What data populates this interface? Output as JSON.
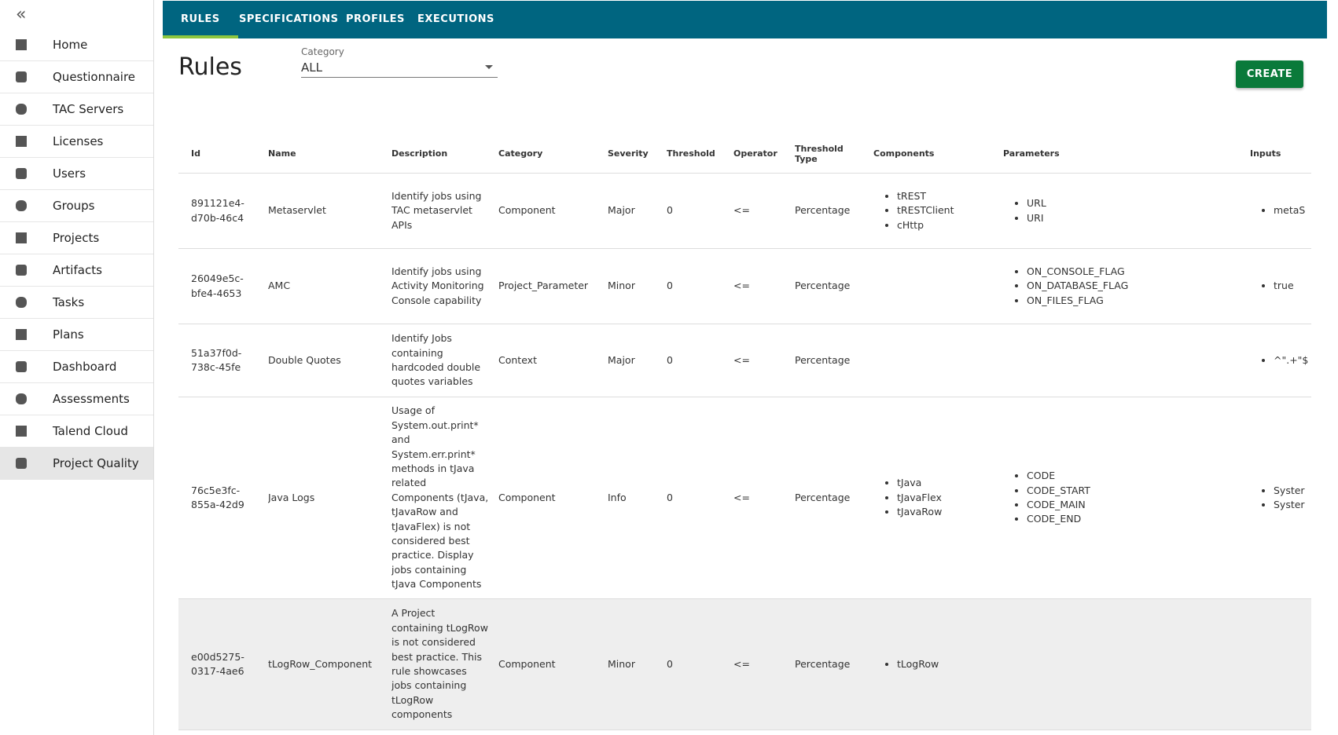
{
  "sidebar": {
    "items": [
      "Home",
      "Questionnaire",
      "TAC Servers",
      "Licenses",
      "Users",
      "Groups",
      "Projects",
      "Artifacts",
      "Tasks",
      "Plans",
      "Dashboard",
      "Assessments",
      "Talend Cloud",
      "Project Quality"
    ],
    "selected": "Project Quality"
  },
  "tabs": [
    "RULES",
    "SPECIFICATIONS",
    "PROFILES",
    "EXECUTIONS"
  ],
  "header": {
    "title": "Rules",
    "category_label": "Category",
    "category_value": "ALL",
    "create_button": "CREATE"
  },
  "table": {
    "columns": [
      "Id",
      "Name",
      "Description",
      "Category",
      "Severity",
      "Threshold",
      "Operator",
      "Threshold Type",
      "Components",
      "Parameters",
      "Inputs"
    ],
    "rows": [
      {
        "id": "891121e4-d70b-46c4",
        "name": "Metaservlet",
        "description": "Identify jobs using TAC metaservlet APIs",
        "category": "Component",
        "severity": "Major",
        "threshold": 0,
        "operator": "<=",
        "threshold_type": "Percentage",
        "components": [
          "tREST",
          "tRESTClient",
          "cHttp"
        ],
        "parameters": [
          "URL",
          "URI"
        ],
        "inputs": [
          "metaS"
        ]
      },
      {
        "id": "26049e5c-bfe4-4653",
        "name": "AMC",
        "description": "Identify jobs using Activity Monitoring Console capability",
        "category": "Project_Parameter",
        "severity": "Minor",
        "threshold": 0,
        "operator": "<=",
        "threshold_type": "Percentage",
        "components": [],
        "parameters": [
          "ON_CONSOLE_FLAG",
          "ON_DATABASE_FLAG",
          "ON_FILES_FLAG"
        ],
        "inputs": [
          "true"
        ]
      },
      {
        "id": "51a37f0d-738c-45fe",
        "name": "Double Quotes",
        "description": "Identify Jobs containing hardcoded double quotes variables",
        "category": "Context",
        "severity": "Major",
        "threshold": 0,
        "operator": "<=",
        "threshold_type": "Percentage",
        "components": [],
        "parameters": [],
        "inputs": [
          "^\".+\"$"
        ]
      },
      {
        "id": "76c5e3fc-855a-42d9",
        "name": "Java Logs",
        "description": "Usage of System.out.print* and System.err.print* methods in tJava related Components (tJava, tJavaRow and tJavaFlex) is not considered best practice. Display jobs containing tJava Components",
        "category": "Component",
        "severity": "Info",
        "threshold": 0,
        "operator": "<=",
        "threshold_type": "Percentage",
        "components": [
          "tJava",
          "tJavaFlex",
          "tJavaRow"
        ],
        "parameters": [
          "CODE",
          "CODE_START",
          "CODE_MAIN",
          "CODE_END"
        ],
        "inputs": [
          "Syster",
          "Syster"
        ]
      },
      {
        "id": "e00d5275-0317-4ae6",
        "name": "tLogRow_Component",
        "description": "A Project containing tLogRow is not considered best practice. This rule showcases jobs containing tLogRow components",
        "category": "Component",
        "severity": "Minor",
        "threshold": 0,
        "operator": "<=",
        "threshold_type": "Percentage",
        "components": [
          "tLogRow"
        ],
        "parameters": [],
        "inputs": []
      }
    ]
  }
}
